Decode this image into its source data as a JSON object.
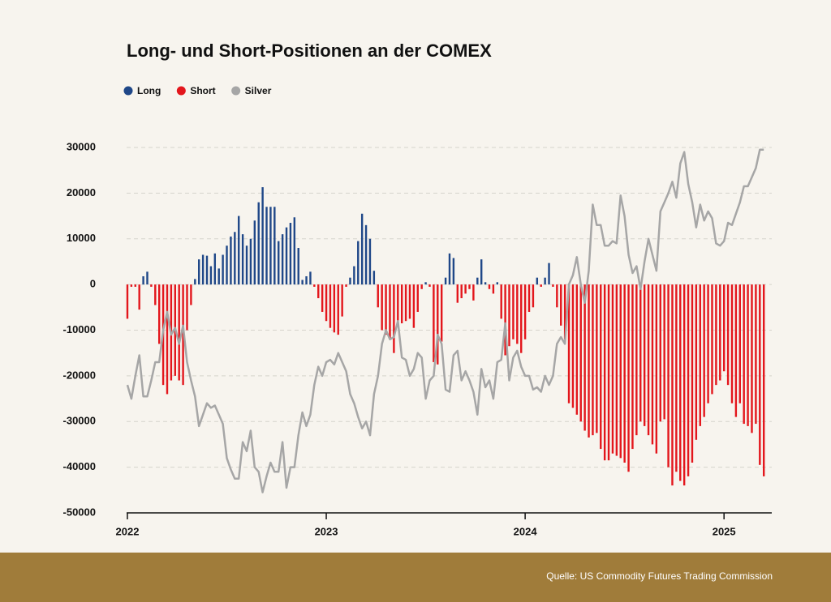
{
  "chart_data": {
    "type": "bar",
    "title": "Long- und Short-Positionen an der COMEX",
    "source": "Quelle: US Commodity Futures Trading Commission",
    "ylim": [
      -50000,
      30000
    ],
    "yticks": [
      -50000,
      -40000,
      -30000,
      -20000,
      -10000,
      0,
      10000,
      20000,
      30000
    ],
    "xlim": [
      -0.2,
      162
    ],
    "xticks": [
      {
        "value": 0,
        "label": "2022"
      },
      {
        "value": 50,
        "label": "2023"
      },
      {
        "value": 100,
        "label": "2024"
      },
      {
        "value": 150,
        "label": "2025"
      }
    ],
    "grid": true,
    "legend": "top-left",
    "series": [
      {
        "name": "Long",
        "color": "#1f4788",
        "type": "bar",
        "values": [
          null,
          null,
          null,
          null,
          1800,
          2800,
          null,
          null,
          null,
          null,
          null,
          null,
          null,
          null,
          null,
          null,
          null,
          1200,
          5500,
          6500,
          6300,
          4000,
          6800,
          3500,
          6500,
          8500,
          10500,
          11500,
          15000,
          11000,
          8500,
          10000,
          14000,
          18000,
          21300,
          17000,
          17000,
          17000,
          9500,
          11000,
          12500,
          13500,
          14700,
          8000,
          1000,
          1800,
          2800,
          null,
          null,
          null,
          null,
          null,
          null,
          null,
          null,
          null,
          1500,
          4000,
          9500,
          15500,
          13000,
          10000,
          3000,
          null,
          null,
          null,
          null,
          null,
          null,
          null,
          null,
          null,
          null,
          null,
          null,
          500,
          null,
          null,
          null,
          null,
          1500,
          6800,
          5800,
          null,
          null,
          null,
          null,
          null,
          1500,
          5500,
          500,
          null,
          null,
          500,
          null,
          null,
          null,
          null,
          null,
          null,
          null,
          null,
          null,
          1500,
          null,
          1500,
          4700,
          null,
          null,
          null,
          null,
          null,
          null,
          null,
          null,
          null,
          null,
          null,
          null,
          null,
          null,
          null,
          null,
          null,
          null,
          null,
          null,
          null,
          null,
          null,
          null,
          null,
          null,
          null,
          null,
          null,
          null,
          null,
          null,
          null,
          null,
          null,
          null,
          null,
          null,
          null,
          null,
          null,
          null,
          null,
          null,
          null,
          null,
          null,
          null,
          null,
          null,
          null,
          null,
          null,
          null
        ]
      },
      {
        "name": "Short",
        "color": "#e3161c",
        "type": "bar",
        "values": [
          -7500,
          -500,
          -500,
          -5500,
          null,
          null,
          -500,
          -4500,
          -13000,
          -22000,
          -24000,
          -21000,
          -20000,
          -21000,
          -22000,
          -10000,
          -4500,
          null,
          null,
          null,
          null,
          null,
          null,
          null,
          null,
          null,
          null,
          null,
          null,
          null,
          null,
          null,
          null,
          null,
          null,
          null,
          null,
          null,
          null,
          null,
          null,
          null,
          null,
          null,
          null,
          null,
          null,
          -500,
          -3000,
          -6000,
          -8000,
          -9500,
          -10500,
          -11000,
          -7000,
          -500,
          null,
          null,
          null,
          null,
          null,
          null,
          null,
          -5000,
          -10000,
          -11000,
          -12000,
          -15000,
          -9000,
          -8500,
          -8000,
          -7500,
          -9500,
          -6000,
          -1000,
          null,
          -500,
          -17000,
          -17500,
          -12500,
          null,
          null,
          null,
          -4000,
          -3000,
          -2000,
          -1000,
          -3500,
          null,
          null,
          null,
          -1000,
          -2000,
          null,
          -7500,
          -15500,
          -13500,
          -12000,
          -13000,
          -15000,
          -12000,
          -6000,
          -5000,
          null,
          -500,
          null,
          null,
          -500,
          -5000,
          -9000,
          -12000,
          -26000,
          -27000,
          -28500,
          -30000,
          -32000,
          -33500,
          -33000,
          -32500,
          -36000,
          -38500,
          -38500,
          -37000,
          -37500,
          -38000,
          -39000,
          -41000,
          -36000,
          -33000,
          -30000,
          -31000,
          -33000,
          -35000,
          -37000,
          -30000,
          -29500,
          -40000,
          -44000,
          -41000,
          -43000,
          -44000,
          -42000,
          -39000,
          -34000,
          -31000,
          -29000,
          -26000,
          -24000,
          -22000,
          -21000,
          -19000,
          -22000,
          -26000,
          -29000,
          -26000,
          -30500,
          -31000,
          -32500,
          -30500,
          -39500,
          -42000
        ]
      },
      {
        "name": "Silver",
        "color": "#a6a6a6",
        "type": "line",
        "values": [
          -22000,
          -25000,
          -20000,
          -15500,
          -24500,
          -24500,
          -21000,
          -17000,
          -17000,
          -10000,
          -6000,
          -11000,
          -9500,
          -13000,
          -9000,
          -17000,
          -21000,
          -24500,
          -31000,
          -28500,
          -26000,
          -27000,
          -26500,
          -28500,
          -30500,
          -38000,
          -40500,
          -42500,
          -42500,
          -34500,
          -36500,
          -32000,
          -40000,
          -41000,
          -45500,
          -42000,
          -39000,
          -41000,
          -41000,
          -34500,
          -44500,
          -40000,
          -40000,
          -33000,
          -28000,
          -31000,
          -28500,
          -22000,
          -18000,
          -20000,
          -17000,
          -16500,
          -17500,
          -15000,
          -17000,
          -19000,
          -24000,
          -26000,
          -29000,
          -31500,
          -30000,
          -33000,
          -24000,
          -20000,
          -13000,
          -10000,
          -12000,
          -11500,
          -8000,
          -16000,
          -16500,
          -20000,
          -18500,
          -15000,
          -16000,
          -25000,
          -21000,
          -20000,
          -11000,
          -13000,
          -23000,
          -23500,
          -15500,
          -14500,
          -21000,
          -19000,
          -21000,
          -23500,
          -28500,
          -18500,
          -22500,
          -21000,
          -25000,
          -17000,
          -16500,
          -8500,
          -21000,
          -16000,
          -14500,
          -18000,
          -20000,
          -20000,
          -23000,
          -22500,
          -23500,
          -20000,
          -22000,
          -20000,
          -13000,
          -11500,
          -13000,
          0,
          2000,
          6000,
          0,
          -4000,
          3000,
          17500,
          13000,
          13000,
          8500,
          8500,
          9500,
          9000,
          19500,
          15000,
          6500,
          2500,
          4000,
          -1000,
          5000,
          10000,
          6500,
          3000,
          16000,
          18000,
          20000,
          22500,
          19000,
          26500,
          29000,
          22000,
          18000,
          12500,
          17500,
          14000,
          16000,
          14500,
          9000,
          8500,
          9500,
          13500,
          13000,
          15500,
          18000,
          21500,
          21500,
          23500,
          25500,
          29500,
          29500
        ]
      }
    ]
  }
}
